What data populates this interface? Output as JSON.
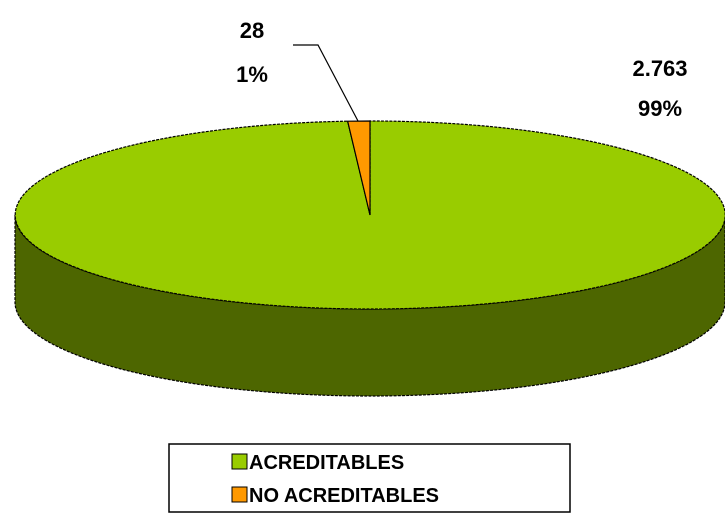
{
  "chart_data": {
    "type": "pie",
    "style": "3d",
    "categories": [
      "ACREDITABLES",
      "NO ACREDITABLES"
    ],
    "values": [
      2763,
      28
    ],
    "value_labels": [
      "2.763",
      "28"
    ],
    "percent_labels": [
      "99%",
      "1%"
    ],
    "colors": {
      "ACREDITABLES": "#99CC00",
      "ACREDITABLES_side": "#4D6600",
      "NO ACREDITABLES": "#FF9900",
      "outline": "#000000"
    },
    "legend_position": "bottom"
  }
}
